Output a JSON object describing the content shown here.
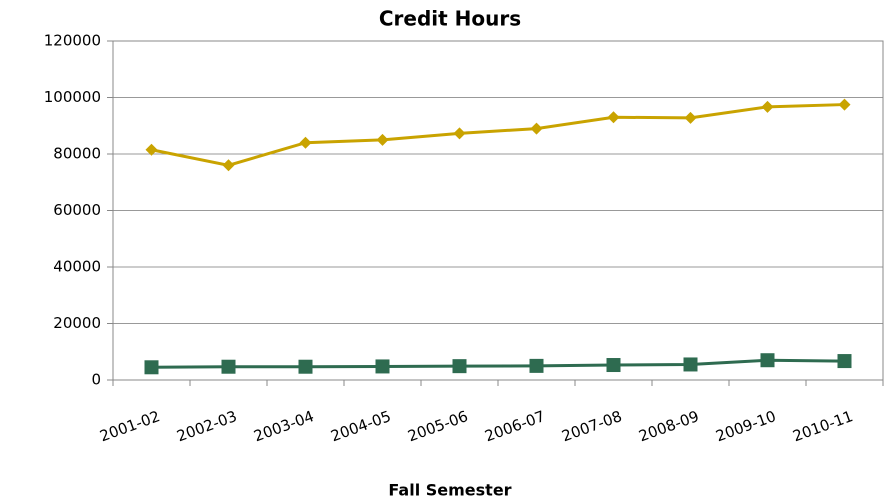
{
  "chart_data": {
    "type": "line",
    "title": "Credit Hours",
    "x_label": "Fall Semester",
    "categories": [
      "2001-02",
      "2002-03",
      "2003-04",
      "2004-05",
      "2005-06",
      "2006-07",
      "2007-08",
      "2008-09",
      "2009-10",
      "2010-11"
    ],
    "series": [
      {
        "color": "#c9a300",
        "marker": "diamond",
        "values": [
          81500,
          76000,
          84000,
          85000,
          87300,
          89000,
          93000,
          92800,
          96700,
          97500
        ]
      },
      {
        "color": "#2e6b50",
        "marker": "square",
        "values": [
          4500,
          4700,
          4700,
          4800,
          4900,
          5000,
          5300,
          5500,
          7000,
          6700
        ]
      }
    ],
    "ylim": [
      0,
      120000
    ],
    "yticks": [
      0,
      20000,
      40000,
      60000,
      80000,
      100000,
      120000
    ],
    "grid": true
  }
}
